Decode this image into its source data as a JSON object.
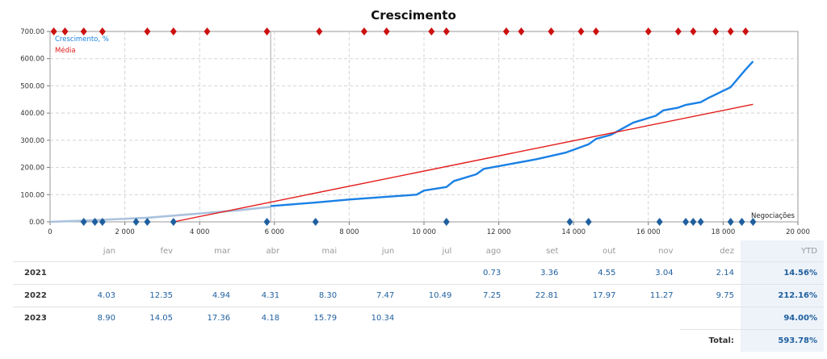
{
  "chart_data": {
    "type": "line",
    "title": "Crescimento",
    "xlabel": "Negociações",
    "ylabel": "",
    "xlim": [
      0,
      20000
    ],
    "ylim": [
      0,
      700
    ],
    "x_ticks": [
      "0",
      "2 000",
      "4 000",
      "6 000",
      "8 000",
      "10 000",
      "12 000",
      "14 000",
      "16 000",
      "18 000",
      "20 000"
    ],
    "y_ticks": [
      "0.00",
      "100.00",
      "200.00",
      "300.00",
      "400.00",
      "500.00",
      "600.00",
      "700.00"
    ],
    "grid": true,
    "legend_position": "top-left",
    "vertical_marker_x": 5900,
    "colors": {
      "growth": "#1a80e5",
      "growth_history": "#a9c2dd",
      "average": "#e31b1b",
      "top_marker": "#cc1010",
      "bottom_marker": "#1f5f9e",
      "grid": "#d4d4d4"
    },
    "series": [
      {
        "name": "Crescimento, %",
        "segments": [
          {
            "part": "history",
            "x": [
              0,
              800,
              1800,
              2600,
              3500,
              4200,
              5000,
              5900
            ],
            "y": [
              0,
              4,
              10,
              15,
              25,
              33,
              42,
              55
            ]
          },
          {
            "part": "current",
            "x": [
              5900,
              7000,
              8000,
              9000,
              9800,
              10000,
              10600,
              10800,
              11400,
              11600,
              12000,
              13000,
              13800,
              14400,
              14600,
              15000,
              15200,
              15600,
              16200,
              16400,
              16800,
              17000,
              17400,
              17600,
              18200,
              18600,
              18800
            ],
            "y": [
              58,
              70,
              82,
              92,
              100,
              115,
              128,
              150,
              175,
              195,
              205,
              230,
              255,
              285,
              305,
              320,
              335,
              365,
              390,
              410,
              420,
              430,
              440,
              455,
              495,
              560,
              590
            ]
          }
        ]
      },
      {
        "name": "Média",
        "x": [
          3300,
          18800
        ],
        "y": [
          0,
          432
        ]
      }
    ],
    "top_markers_x": [
      100,
      400,
      900,
      1400,
      2600,
      3300,
      4200,
      5800,
      7200,
      8400,
      9000,
      10200,
      10600,
      12200,
      12600,
      13400,
      14200,
      14600,
      16000,
      16800,
      17200,
      17800,
      18200,
      18600
    ],
    "bottom_markers_x": [
      900,
      1200,
      1400,
      2300,
      2600,
      3300,
      5800,
      7100,
      10600,
      13900,
      14400,
      16300,
      17000,
      17200,
      17400,
      18200,
      18500,
      18800
    ]
  },
  "table": {
    "months": [
      "jan",
      "fev",
      "mar",
      "abr",
      "mai",
      "jun",
      "jul",
      "ago",
      "set",
      "out",
      "nov",
      "dez"
    ],
    "ytd_header": "YTD",
    "rows": [
      {
        "year": "2021",
        "values": [
          "",
          "",
          "",
          "",
          "",
          "",
          "",
          "0.73",
          "3.36",
          "4.55",
          "3.04",
          "2.14"
        ],
        "ytd": "14.56%"
      },
      {
        "year": "2022",
        "values": [
          "4.03",
          "12.35",
          "4.94",
          "4.31",
          "8.30",
          "7.47",
          "10.49",
          "7.25",
          "22.81",
          "17.97",
          "11.27",
          "9.75"
        ],
        "ytd": "212.16%"
      },
      {
        "year": "2023",
        "values": [
          "8.90",
          "14.05",
          "17.36",
          "4.18",
          "15.79",
          "10.34",
          "",
          "",
          "",
          "",
          "",
          ""
        ],
        "ytd": "94.00%"
      }
    ],
    "total_label": "Total:",
    "total_value": "593.78%"
  }
}
